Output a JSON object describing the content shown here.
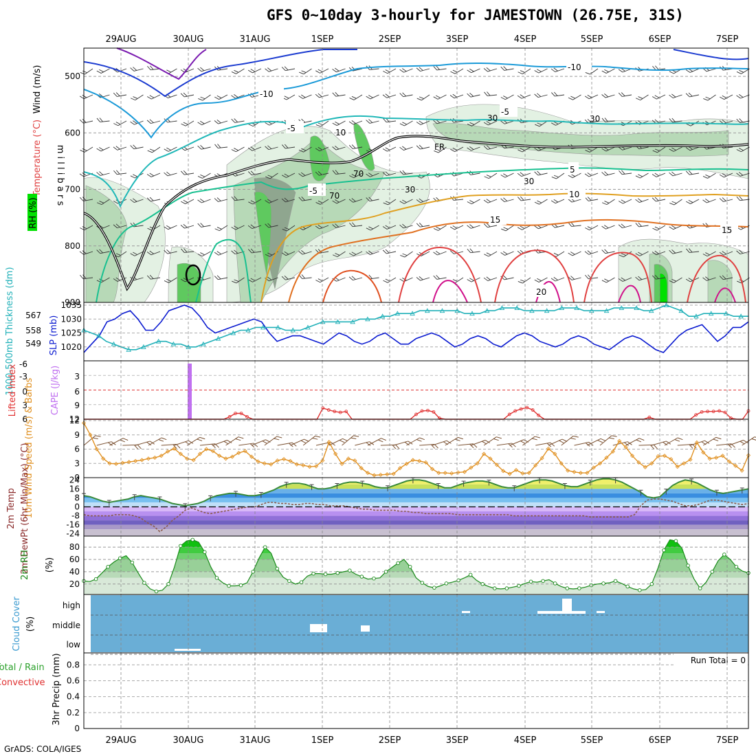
{
  "title": "GFS 0~10day 3-hourly for JAMESTOWN (26.75E, 31S)",
  "footer": "GrADS: COLA/IGES",
  "dates": [
    "29AUG",
    "30AUG",
    "31AUG",
    "1SEP",
    "2SEP",
    "3SEP",
    "4SEP",
    "5SEP",
    "6SEP",
    "7SEP"
  ],
  "colors": {
    "rh_light": "#e3f1e3",
    "rh_mid": "#b7d9b7",
    "rh_gray": "#8fa68f",
    "rh_green": "#5fc95f",
    "rh_bright": "#00e000",
    "slp": "#0a1ad0",
    "thickness": "#20b0b8",
    "lifted": "#e03030",
    "cape": "#c070f0",
    "wind": "#e09020",
    "barb": "#7a5030",
    "temp_fill": "#3a8a3a",
    "dew": "#8a5a4a",
    "rh2m": "#1a8a1a",
    "cloud": "#6aaed6",
    "cloud_white": "#ffffff"
  },
  "chart_data": [
    {
      "type": "contour",
      "name": "upper-air",
      "ylabel": "millibars",
      "ylabels": [
        "Wind (m/s)",
        "Temperature (°C)",
        "RH (%)"
      ],
      "yticks": [
        500,
        600,
        700,
        800,
        900
      ],
      "ylim": [
        450,
        900
      ],
      "temperature_labels": [
        "-10",
        "-10",
        "-5",
        "-5",
        "5",
        "-5",
        "10",
        "15",
        "15",
        "20"
      ],
      "freezing_label": "FR",
      "rh_labels": [
        "30",
        "30",
        "10",
        "70",
        "70",
        "30",
        "30"
      ]
    },
    {
      "type": "line",
      "name": "slp-thickness",
      "ylabel_left": "1000-500mb Thickness (dm)",
      "ylabel_right": "SLP (mb)",
      "yticks_left": [
        549,
        558,
        567
      ],
      "yticks_right": [
        1020,
        1025,
        1030,
        1035
      ],
      "series": [
        {
          "name": "SLP",
          "values": [
            1018,
            1021,
            1024,
            1029,
            1030,
            1032,
            1033,
            1030,
            1026,
            1026,
            1029,
            1033,
            1034,
            1035,
            1034,
            1031,
            1027,
            1025,
            1026,
            1027,
            1028,
            1029,
            1030,
            1029,
            1025,
            1022,
            1023,
            1024,
            1024,
            1023,
            1022,
            1021,
            1023,
            1025,
            1024,
            1022,
            1021,
            1022,
            1024,
            1025,
            1023,
            1021,
            1021,
            1023,
            1024,
            1025,
            1024,
            1022,
            1020,
            1021,
            1023,
            1024,
            1023,
            1021,
            1020,
            1022,
            1024,
            1025,
            1024,
            1022,
            1021,
            1020,
            1021,
            1023,
            1024,
            1023,
            1021,
            1020,
            1019,
            1021,
            1023,
            1024,
            1023,
            1021,
            1019,
            1018,
            1021,
            1024,
            1026,
            1027,
            1028,
            1025,
            1022,
            1024,
            1027,
            1027,
            1029
          ]
        },
        {
          "name": "Thickness",
          "values": [
            1026,
            1025,
            1024,
            1022,
            1021,
            1020,
            1019,
            1019,
            1020,
            1021,
            1022,
            1022,
            1021,
            1021,
            1020,
            1020,
            1021,
            1022,
            1023,
            1024,
            1025,
            1026,
            1026,
            1027,
            1027,
            1027,
            1027,
            1026,
            1026,
            1026,
            1027,
            1028,
            1029,
            1029,
            1029,
            1029,
            1029,
            1030,
            1030,
            1030,
            1031,
            1031,
            1032,
            1032,
            1032,
            1033,
            1033,
            1033,
            1033,
            1033,
            1033,
            1032,
            1032,
            1032,
            1033,
            1033,
            1034,
            1034,
            1034,
            1033,
            1033,
            1033,
            1033,
            1033,
            1034,
            1034,
            1034,
            1033,
            1033,
            1033,
            1033,
            1034,
            1034,
            1034,
            1034,
            1033,
            1033,
            1034,
            1035,
            1034,
            1033,
            1031,
            1031,
            1032,
            1032,
            1032,
            1032,
            1031,
            1031,
            1031
          ]
        }
      ]
    },
    {
      "type": "bar-line",
      "name": "cape-lifted",
      "ylabel_left": "Lifted Index",
      "ylabel_right": "CAPE (J/kg)",
      "yticks_left": [
        "-6",
        "-3",
        "0",
        "3",
        "6"
      ],
      "yticks_right": [
        "12",
        "9",
        "6",
        "3"
      ],
      "cape": [
        {
          "x": 1.5,
          "value": 12
        }
      ],
      "lifted_index": [
        6,
        6,
        6,
        6,
        6,
        6,
        6,
        6,
        6,
        6,
        6,
        6,
        6,
        6,
        6,
        6,
        6,
        6,
        6,
        6,
        6,
        6,
        6,
        6,
        6,
        5.5,
        4.8,
        4.8,
        5.5,
        6,
        6,
        6,
        6,
        6,
        6,
        6,
        6,
        6,
        6,
        6,
        6,
        3.7,
        4.1,
        4.4,
        4.6,
        4.4,
        6,
        6,
        6,
        6,
        6,
        6,
        6,
        6,
        6,
        6,
        6,
        5,
        4.3,
        4.2,
        4.5,
        5.8,
        6,
        6,
        6,
        6,
        6,
        6,
        6,
        6,
        6,
        6,
        6,
        5,
        4.3,
        3.9,
        3.6,
        4.1,
        5.2,
        6,
        6,
        6,
        6,
        6,
        6,
        6,
        6,
        6,
        6,
        6,
        6,
        6,
        6,
        6,
        6,
        6,
        6,
        5.6,
        6,
        6,
        6,
        6,
        6,
        6,
        6,
        5.1,
        4.5,
        4.4,
        4.4,
        4.3,
        4.6,
        5.8,
        6,
        6,
        4.3
      ]
    },
    {
      "type": "line",
      "name": "10m-wind",
      "ylabel": "10m Wind Speed (m/s) & Barbs",
      "yticks": [
        0,
        3,
        6,
        9,
        12
      ],
      "values": [
        11.5,
        9,
        6,
        4,
        3,
        2.9,
        3.1,
        3.3,
        3.5,
        3.7,
        4,
        4.2,
        4.6,
        5.5,
        6.1,
        5,
        4,
        3.7,
        5,
        6,
        5.6,
        4.6,
        4,
        4.4,
        5.2,
        5.6,
        4.4,
        3.4,
        3,
        2.8,
        3.6,
        3.9,
        3.5,
        2.8,
        2.6,
        2.3,
        2.4,
        3.6,
        7.5,
        5,
        2.9,
        4,
        3.6,
        2,
        1,
        0.5,
        0.6,
        0.7,
        0.8,
        2,
        2.9,
        3.7,
        3.5,
        3.2,
        1.8,
        1,
        1,
        0.9,
        1.1,
        1.2,
        2.1,
        3,
        5,
        4,
        2.7,
        1.4,
        0.8,
        1.6,
        0.9,
        1,
        2.6,
        4.1,
        6.1,
        5,
        3,
        1.5,
        1.2,
        1,
        1,
        2.1,
        3,
        4.2,
        5.5,
        7.7,
        6.4,
        4.6,
        3.2,
        2.2,
        3,
        4.5,
        4.6,
        3.9,
        2.3,
        3,
        3.8,
        7.4,
        5.3,
        4,
        4.2,
        4.6,
        3.4,
        2.5,
        1.5,
        4.7
      ]
    },
    {
      "type": "area-line",
      "name": "2m-temp-dewpt",
      "ylabel": "2m Temp / 2m DewPt (6hr Min/Max) (°C)",
      "yticks": [
        24,
        16,
        8,
        0,
        -8,
        -16,
        -24
      ],
      "temp": [
        10,
        9,
        7,
        5,
        4,
        5,
        6,
        7,
        9,
        10,
        9,
        8,
        7,
        5,
        3,
        2,
        1,
        2,
        3,
        5,
        8,
        10,
        11,
        12,
        12,
        11,
        10,
        10,
        11,
        13,
        15,
        18,
        20,
        21,
        21,
        20,
        18,
        16,
        16,
        17,
        19,
        21,
        22,
        22,
        21,
        20,
        18,
        17,
        17,
        19,
        21,
        23,
        24,
        24,
        23,
        21,
        19,
        17,
        17,
        19,
        21,
        22,
        23,
        23,
        22,
        20,
        18,
        17,
        17,
        19,
        21,
        23,
        24,
        24,
        23,
        21,
        19,
        18,
        18,
        20,
        22,
        24,
        25,
        25,
        24,
        22,
        19,
        16,
        13,
        9,
        8,
        9,
        14,
        19,
        22,
        24,
        23,
        21,
        18,
        15,
        13,
        12,
        13,
        14,
        15,
        16
      ],
      "dewpt": [
        -7,
        -8,
        -8,
        -8,
        -8,
        -7,
        -7,
        -7,
        -8,
        -10,
        -14,
        -17,
        -22,
        -18,
        -12,
        -8,
        -3,
        -1,
        -3,
        -5,
        -6,
        -5,
        -4,
        -3,
        -2,
        -1,
        0,
        0,
        2,
        4,
        4,
        3,
        3,
        2,
        2,
        3,
        3,
        2,
        2,
        1,
        1,
        1,
        0,
        -1,
        -2,
        -2,
        -3,
        -3,
        -3,
        -3,
        -4,
        -4,
        -5,
        -5,
        -6,
        -6,
        -6,
        -6,
        -6,
        -7,
        -7,
        -7,
        -7,
        -7,
        -7,
        -7,
        -7,
        -7,
        -8,
        -8,
        -8,
        -8,
        -8,
        -8,
        -8,
        -8,
        -8,
        -8,
        -8,
        -8,
        -9,
        -9,
        -9,
        -9,
        -9,
        -9,
        -9,
        -7,
        1,
        6,
        7,
        7,
        6,
        5,
        3,
        1,
        1,
        2,
        4,
        6,
        6,
        5,
        4,
        3,
        2,
        3
      ]
    },
    {
      "type": "area",
      "name": "2m-rh",
      "ylabel": "2m RH (%)",
      "yticks": [
        20,
        40,
        60,
        80
      ],
      "values": [
        25,
        24,
        28,
        38,
        48,
        56,
        62,
        66,
        55,
        38,
        22,
        12,
        8,
        10,
        20,
        48,
        82,
        90,
        92,
        88,
        72,
        48,
        30,
        22,
        17,
        17,
        18,
        22,
        40,
        62,
        80,
        70,
        45,
        31,
        25,
        20,
        23,
        33,
        37,
        37,
        36,
        36,
        38,
        40,
        42,
        36,
        32,
        28,
        29,
        30,
        40,
        47,
        54,
        60,
        48,
        30,
        22,
        16,
        14,
        17,
        21,
        23,
        26,
        30,
        35,
        26,
        20,
        16,
        13,
        12,
        13,
        15,
        17,
        21,
        24,
        23,
        25,
        27,
        21,
        16,
        13,
        12,
        13,
        15,
        18,
        20,
        21,
        22,
        25,
        21,
        16,
        12,
        10,
        11,
        20,
        45,
        75,
        92,
        90,
        78,
        50,
        28,
        13,
        23,
        40,
        58,
        68,
        60,
        48,
        41,
        38
      ]
    },
    {
      "type": "bar",
      "name": "cloud-cover",
      "ylabel": "Cloud Cover (%)",
      "levels": [
        "high",
        "middle",
        "low"
      ]
    },
    {
      "type": "bar",
      "name": "precip",
      "ylabel": "3hr Precip (mm)",
      "ylabels_left": [
        "Total / Rain",
        "Convective"
      ],
      "yticks": [
        0,
        0.2,
        0.4,
        0.6,
        0.8
      ],
      "run_total": "Run Total = 0",
      "values": []
    }
  ]
}
